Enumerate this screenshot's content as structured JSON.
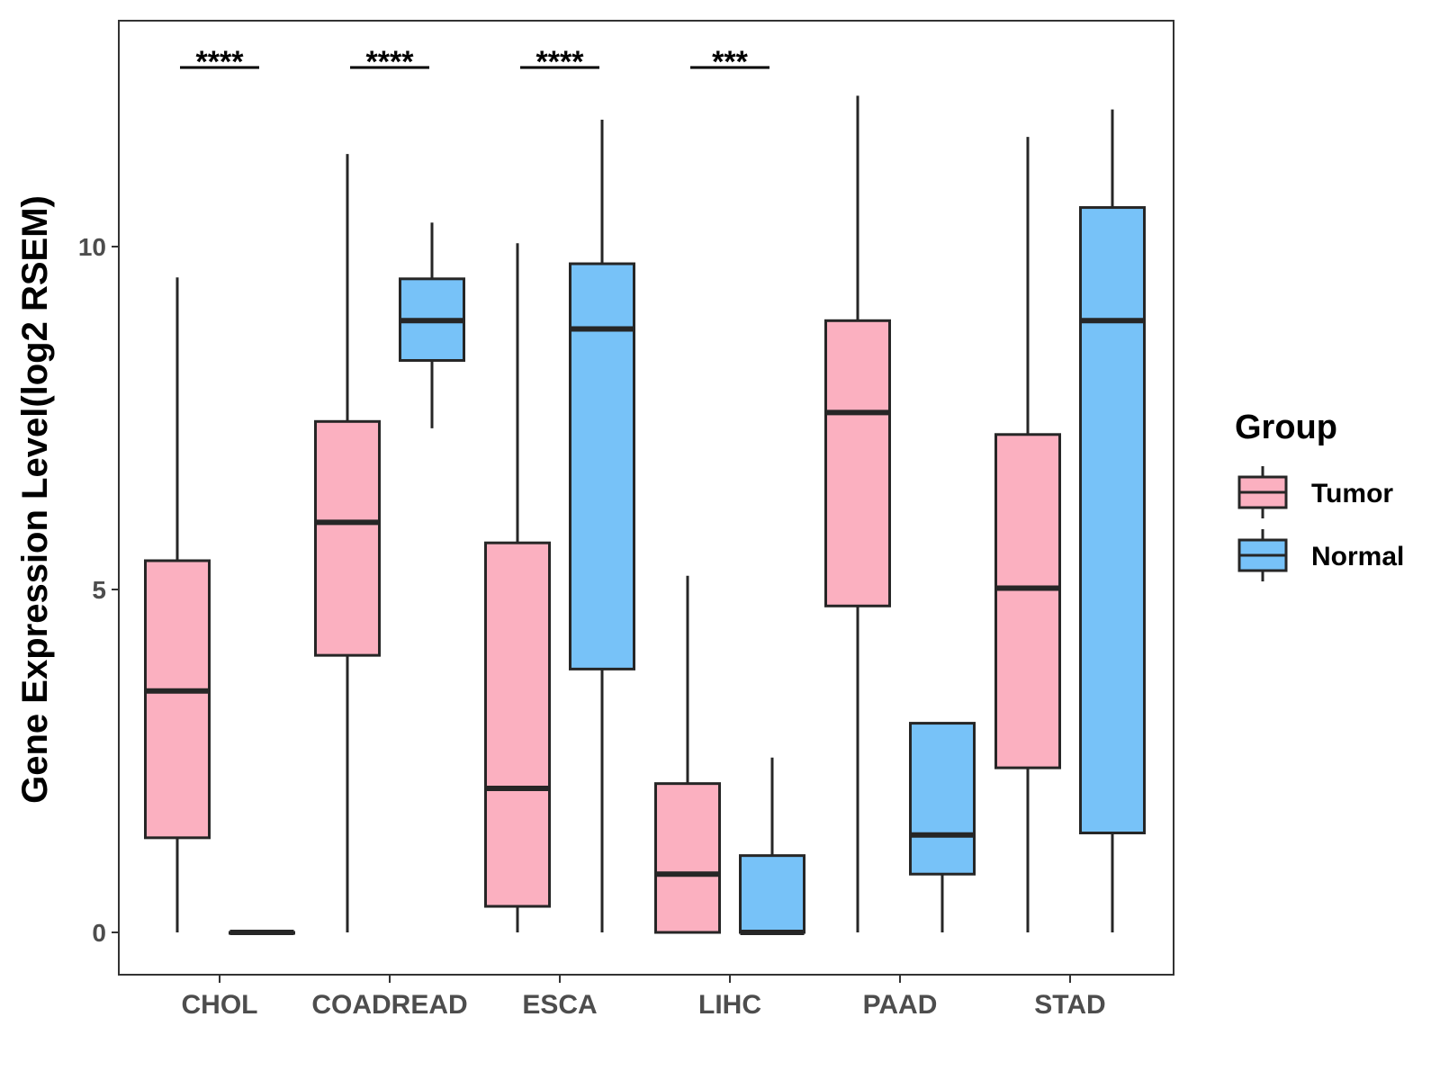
{
  "chart_data": {
    "type": "boxplot",
    "title": "",
    "xlabel": "",
    "ylabel": "Gene Expression Level(log2 RSEM)",
    "ylim": [
      -0.6,
      13.3
    ],
    "yticks": [
      0,
      5,
      10
    ],
    "grid": false,
    "categories": [
      "CHOL",
      "COADREAD",
      "ESCA",
      "LIHC",
      "PAAD",
      "STAD"
    ],
    "legend": {
      "title": "Group",
      "position": "right",
      "entries": [
        {
          "name": "Tumor",
          "color": "#FBB0C0"
        },
        {
          "name": "Normal",
          "color": "#77C2F8"
        }
      ]
    },
    "series": [
      {
        "name": "Tumor",
        "color": "#FBB0C0",
        "boxes": [
          {
            "min": 0.0,
            "q1": 1.38,
            "median": 3.52,
            "q3": 5.42,
            "max": 9.55
          },
          {
            "min": 0.0,
            "q1": 4.04,
            "median": 5.98,
            "q3": 7.45,
            "max": 11.35
          },
          {
            "min": 0.0,
            "q1": 0.38,
            "median": 2.1,
            "q3": 5.68,
            "max": 10.05
          },
          {
            "min": 0.0,
            "q1": 0.0,
            "median": 0.85,
            "q3": 2.17,
            "max": 5.2
          },
          {
            "min": 0.0,
            "q1": 4.76,
            "median": 7.58,
            "q3": 8.92,
            "max": 12.2
          },
          {
            "min": 0.0,
            "q1": 2.4,
            "median": 5.02,
            "q3": 7.26,
            "max": 11.6
          }
        ]
      },
      {
        "name": "Normal",
        "color": "#77C2F8",
        "boxes": [
          {
            "min": 0.0,
            "q1": 0.0,
            "median": 0.0,
            "q3": 0.0,
            "max": 0.0
          },
          {
            "min": 7.35,
            "q1": 8.34,
            "median": 8.92,
            "q3": 9.53,
            "max": 10.35
          },
          {
            "min": 0.0,
            "q1": 3.84,
            "median": 8.8,
            "q3": 9.75,
            "max": 11.85
          },
          {
            "min": 0.0,
            "q1": 0.0,
            "median": 0.0,
            "q3": 1.12,
            "max": 2.55
          },
          {
            "min": 0.0,
            "q1": 0.85,
            "median": 1.42,
            "q3": 3.05,
            "max": 3.05
          },
          {
            "min": 0.0,
            "q1": 1.45,
            "median": 8.92,
            "q3": 10.57,
            "max": 12.0
          }
        ]
      }
    ],
    "significance": [
      {
        "category": "CHOL",
        "label": "****"
      },
      {
        "category": "COADREAD",
        "label": "****"
      },
      {
        "category": "ESCA",
        "label": "****"
      },
      {
        "category": "LIHC",
        "label": "***"
      }
    ]
  }
}
